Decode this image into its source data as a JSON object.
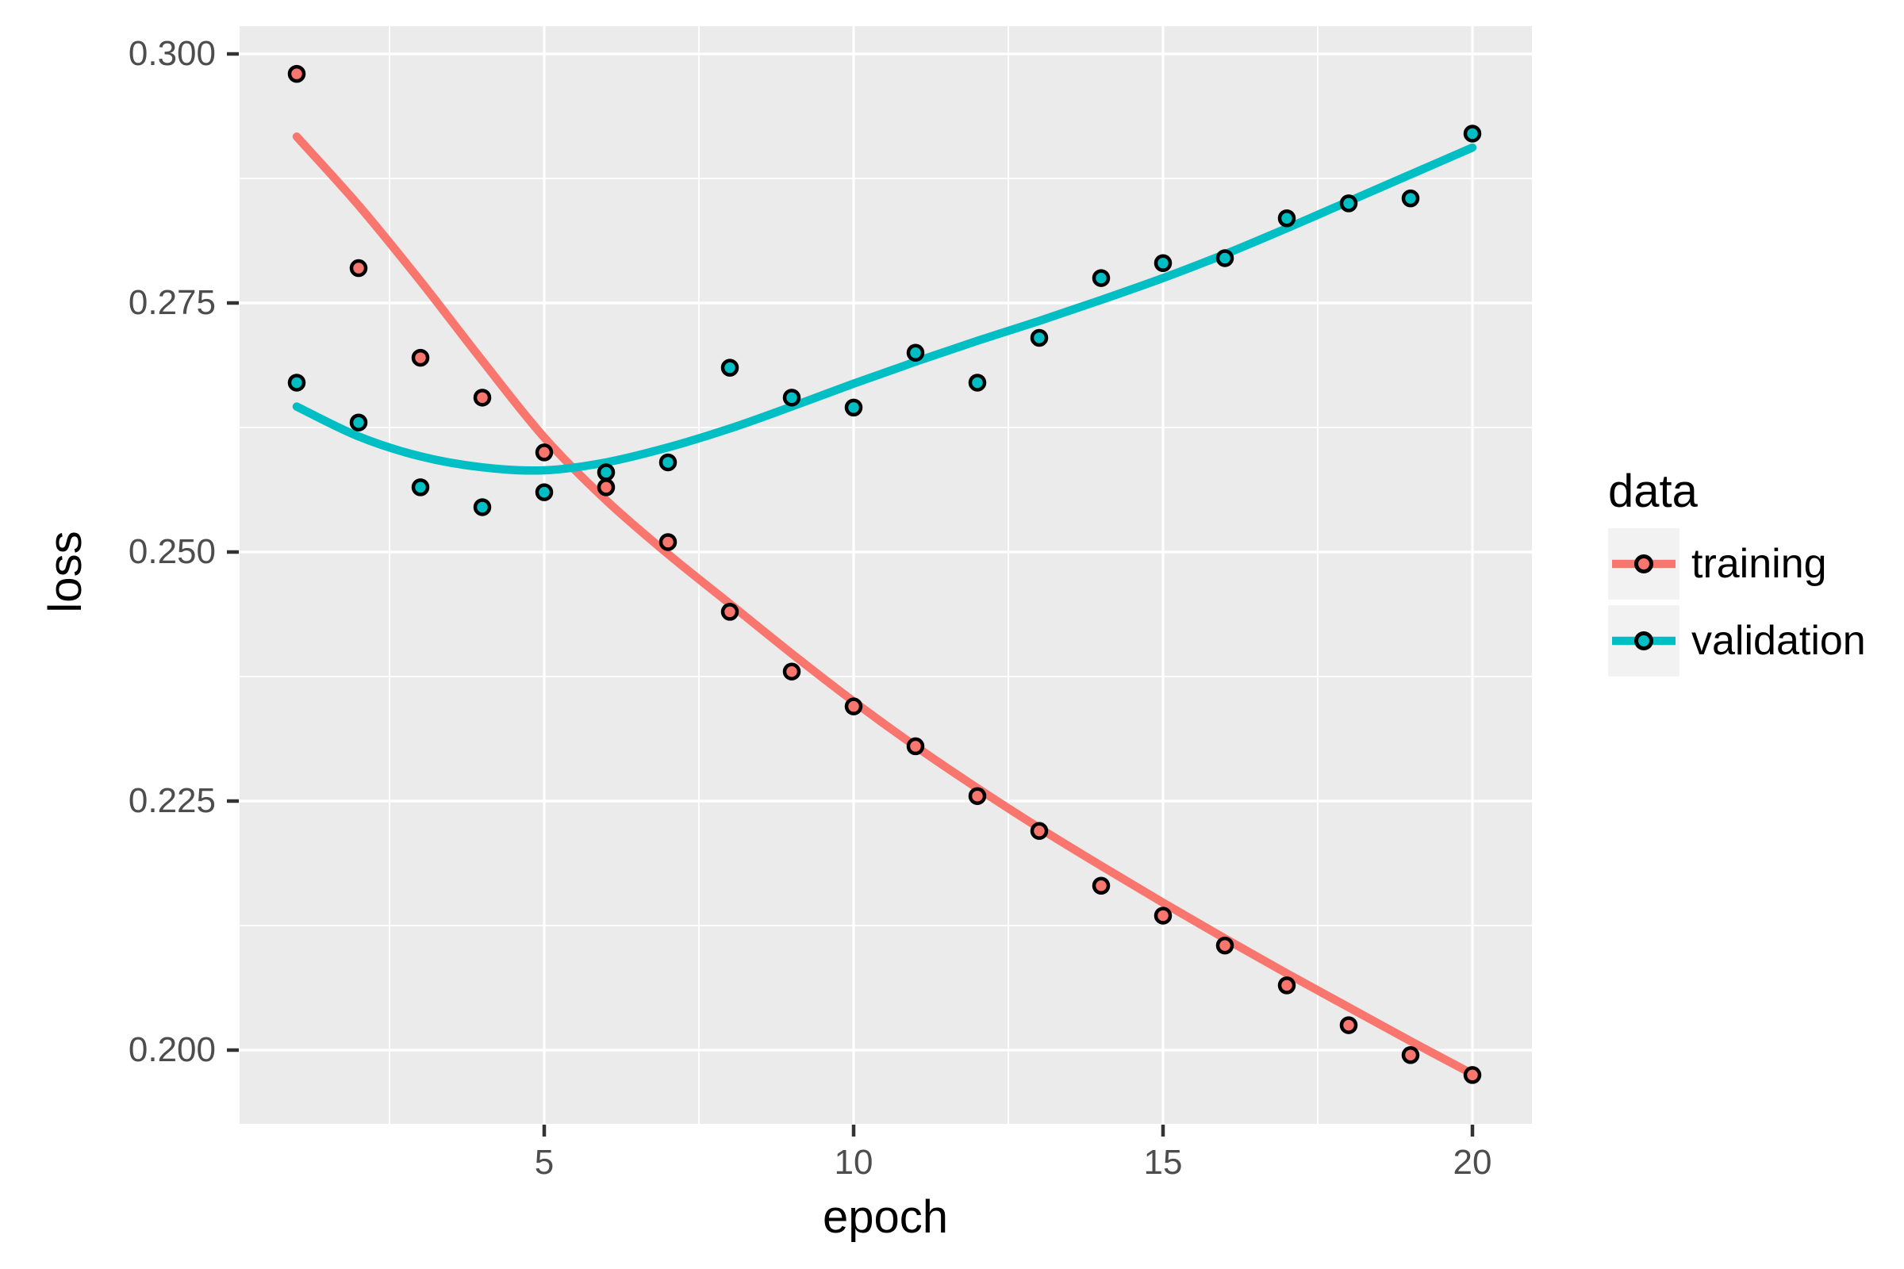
{
  "chart_data": {
    "type": "scatter",
    "title": "",
    "xlabel": "epoch",
    "ylabel": "loss",
    "legend_title": "data",
    "legend_position": "right",
    "grid": true,
    "x_ticks": [
      "5",
      "10",
      "15",
      "20"
    ],
    "x_tick_values": [
      5,
      10,
      15,
      20
    ],
    "x_minor_values": [
      2.5,
      7.5,
      12.5,
      17.5
    ],
    "y_ticks": [
      "0.300",
      "0.275",
      "0.250",
      "0.225",
      "0.200"
    ],
    "y_tick_values": [
      0.3,
      0.275,
      0.25,
      0.225,
      0.2
    ],
    "y_minor_values": [
      0.2875,
      0.2625,
      0.2375,
      0.2125
    ],
    "xlim": [
      0.05,
      20.95
    ],
    "ylim": [
      0.1926,
      0.3028
    ],
    "x": [
      1,
      2,
      3,
      4,
      5,
      6,
      7,
      8,
      9,
      10,
      11,
      12,
      13,
      14,
      15,
      16,
      17,
      18,
      19,
      20
    ],
    "series": [
      {
        "name": "training",
        "color": "#F8766D",
        "marker": "circle-black-outline",
        "points": [
          0.298,
          0.2785,
          0.2695,
          0.2655,
          0.26,
          0.2565,
          0.251,
          0.244,
          0.238,
          0.2345,
          0.2305,
          0.2255,
          0.222,
          0.2165,
          0.2135,
          0.2105,
          0.2065,
          0.2025,
          0.1995,
          0.1975
        ],
        "smooth": [
          0.2917,
          0.2848,
          0.2772,
          0.2692,
          0.2615,
          0.2552,
          0.2498,
          0.2448,
          0.2398,
          0.235,
          0.2305,
          0.2263,
          0.2223,
          0.2185,
          0.2148,
          0.2112,
          0.2077,
          0.2043,
          0.2009,
          0.1976
        ]
      },
      {
        "name": "validation",
        "color": "#00BFC4",
        "marker": "circle-black-outline",
        "points": [
          0.267,
          0.263,
          0.2565,
          0.2545,
          0.256,
          0.258,
          0.259,
          0.2685,
          0.2655,
          0.2645,
          0.27,
          0.267,
          0.2715,
          0.2775,
          0.279,
          0.2795,
          0.2835,
          0.285,
          0.2855,
          0.292
        ],
        "smooth": [
          0.2646,
          0.2616,
          0.2596,
          0.2585,
          0.2582,
          0.259,
          0.2605,
          0.2624,
          0.2646,
          0.2669,
          0.2691,
          0.2712,
          0.2732,
          0.2753,
          0.2775,
          0.2799,
          0.2825,
          0.2852,
          0.2879,
          0.2906
        ]
      }
    ],
    "colors": {
      "panel_bg": "#EBEBEB",
      "grid": "#FFFFFF",
      "tick_mark": "#333333",
      "tick_label": "#4D4D4D",
      "axis_title": "#000000",
      "marker_outline": "#000000",
      "legend_key_bg": "#F2F2F2",
      "page_bg": "#FFFFFF"
    }
  }
}
